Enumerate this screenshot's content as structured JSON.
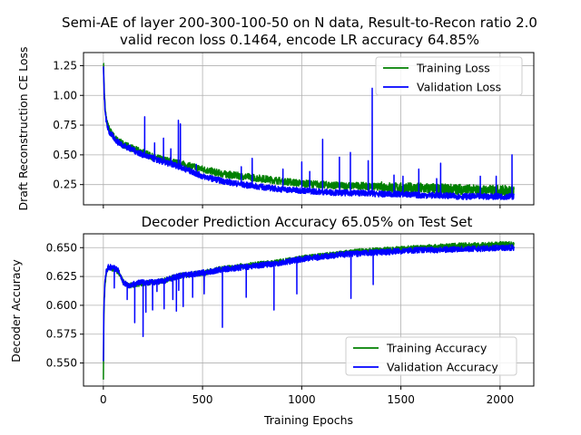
{
  "chart_data": [
    {
      "type": "line",
      "title": "Semi-AE of layer 200-300-100-50 on N data, Result-to-Recon ratio 2.0\nvalid recon loss 0.1464, encode LR accuracy 64.85%",
      "xlabel": "",
      "ylabel": "Draft Reconstruction CE Loss",
      "xlim": [
        -100,
        2170
      ],
      "ylim": [
        0.08,
        1.36
      ],
      "xticks": [
        0,
        500,
        1000,
        1500,
        2000
      ],
      "yticks": [
        0.25,
        0.5,
        0.75,
        1.0,
        1.25
      ],
      "ytick_labels": [
        "0.25",
        "0.50",
        "0.75",
        "1.00",
        "1.25"
      ],
      "grid": true,
      "legend_position": "upper right",
      "colors": {
        "train": "#008000",
        "valid": "#0000ff"
      },
      "series": [
        {
          "name": "Training Loss",
          "x": [
            0,
            5,
            10,
            20,
            30,
            50,
            70,
            100,
            150,
            200,
            250,
            300,
            350,
            400,
            500,
            600,
            700,
            800,
            900,
            1000,
            1100,
            1200,
            1300,
            1400,
            1500,
            1600,
            1700,
            1800,
            1900,
            2000,
            2070
          ],
          "values": [
            1.3,
            1.02,
            0.86,
            0.76,
            0.71,
            0.66,
            0.62,
            0.59,
            0.55,
            0.52,
            0.48,
            0.46,
            0.44,
            0.42,
            0.38,
            0.34,
            0.32,
            0.3,
            0.28,
            0.26,
            0.25,
            0.24,
            0.24,
            0.23,
            0.22,
            0.22,
            0.21,
            0.21,
            0.2,
            0.2,
            0.2
          ]
        },
        {
          "name": "Validation Loss",
          "x": [
            0,
            5,
            10,
            20,
            30,
            50,
            70,
            100,
            150,
            200,
            250,
            300,
            350,
            400,
            500,
            600,
            700,
            800,
            900,
            1000,
            1100,
            1200,
            1300,
            1400,
            1500,
            1600,
            1700,
            1800,
            1900,
            2000,
            2070
          ],
          "values": [
            1.24,
            0.98,
            0.84,
            0.74,
            0.69,
            0.65,
            0.61,
            0.58,
            0.54,
            0.5,
            0.47,
            0.44,
            0.42,
            0.39,
            0.32,
            0.28,
            0.25,
            0.23,
            0.21,
            0.2,
            0.19,
            0.18,
            0.18,
            0.17,
            0.17,
            0.16,
            0.16,
            0.15,
            0.15,
            0.15,
            0.15
          ],
          "spikes": [
            [
              80,
              0.62
            ],
            [
              135,
              0.58
            ],
            [
              208,
              0.82
            ],
            [
              258,
              0.6
            ],
            [
              303,
              0.64
            ],
            [
              340,
              0.55
            ],
            [
              378,
              0.79
            ],
            [
              388,
              0.76
            ],
            [
              468,
              0.42
            ],
            [
              695,
              0.4
            ],
            [
              750,
              0.47
            ],
            [
              905,
              0.38
            ],
            [
              1000,
              0.44
            ],
            [
              1040,
              0.36
            ],
            [
              1105,
              0.63
            ],
            [
              1190,
              0.48
            ],
            [
              1245,
              0.52
            ],
            [
              1335,
              0.45
            ],
            [
              1355,
              1.06
            ],
            [
              1465,
              0.33
            ],
            [
              1510,
              0.32
            ],
            [
              1590,
              0.38
            ],
            [
              1680,
              0.3
            ],
            [
              1700,
              0.43
            ],
            [
              1900,
              0.32
            ],
            [
              1980,
              0.32
            ],
            [
              2060,
              0.5
            ]
          ]
        }
      ]
    },
    {
      "type": "line",
      "title": "Decoder Prediction Accuracy 65.05% on Test Set",
      "xlabel": "Training Epochs",
      "ylabel": "Decoder Accuracy",
      "xlim": [
        -100,
        2170
      ],
      "ylim": [
        0.53,
        0.662
      ],
      "xticks": [
        0,
        500,
        1000,
        1500,
        2000
      ],
      "yticks": [
        0.55,
        0.575,
        0.6,
        0.625,
        0.65
      ],
      "ytick_labels": [
        "0.550",
        "0.575",
        "0.600",
        "0.625",
        "0.650"
      ],
      "grid": true,
      "legend_position": "lower right",
      "colors": {
        "train": "#008000",
        "valid": "#0000ff"
      },
      "series": [
        {
          "name": "Training Accuracy",
          "x": [
            0,
            2,
            4,
            8,
            15,
            25,
            40,
            60,
            80,
            100,
            130,
            160,
            200,
            250,
            300,
            350,
            400,
            450,
            500,
            600,
            700,
            800,
            900,
            1000,
            1100,
            1200,
            1300,
            1400,
            1500,
            1600,
            1700,
            1800,
            1900,
            2000,
            2070
          ],
          "values": [
            0.537,
            0.58,
            0.6,
            0.618,
            0.629,
            0.632,
            0.632,
            0.631,
            0.628,
            0.62,
            0.617,
            0.618,
            0.619,
            0.62,
            0.621,
            0.624,
            0.626,
            0.627,
            0.628,
            0.632,
            0.634,
            0.636,
            0.638,
            0.641,
            0.643,
            0.645,
            0.647,
            0.648,
            0.649,
            0.65,
            0.651,
            0.652,
            0.652,
            0.653,
            0.653
          ]
        },
        {
          "name": "Validation Accuracy",
          "x": [
            0,
            2,
            4,
            8,
            15,
            25,
            40,
            60,
            80,
            100,
            130,
            160,
            200,
            250,
            300,
            350,
            400,
            450,
            500,
            600,
            700,
            800,
            900,
            1000,
            1100,
            1200,
            1300,
            1400,
            1500,
            1600,
            1700,
            1800,
            1900,
            2000,
            2070
          ],
          "values": [
            0.55,
            0.59,
            0.605,
            0.62,
            0.63,
            0.633,
            0.633,
            0.632,
            0.629,
            0.62,
            0.617,
            0.619,
            0.62,
            0.62,
            0.621,
            0.624,
            0.626,
            0.627,
            0.628,
            0.631,
            0.633,
            0.635,
            0.637,
            0.64,
            0.642,
            0.644,
            0.645,
            0.646,
            0.647,
            0.648,
            0.648,
            0.649,
            0.649,
            0.65,
            0.65
          ],
          "dips": [
            [
              55,
              0.615
            ],
            [
              120,
              0.605
            ],
            [
              158,
              0.585
            ],
            [
              200,
              0.573
            ],
            [
              214,
              0.594
            ],
            [
              248,
              0.596
            ],
            [
              270,
              0.612
            ],
            [
              306,
              0.597
            ],
            [
              350,
              0.605
            ],
            [
              368,
              0.595
            ],
            [
              380,
              0.613
            ],
            [
              402,
              0.599
            ],
            [
              450,
              0.607
            ],
            [
              508,
              0.61
            ],
            [
              600,
              0.581
            ],
            [
              720,
              0.607
            ],
            [
              860,
              0.596
            ],
            [
              975,
              0.61
            ],
            [
              1248,
              0.606
            ],
            [
              1360,
              0.618
            ]
          ]
        }
      ]
    }
  ]
}
